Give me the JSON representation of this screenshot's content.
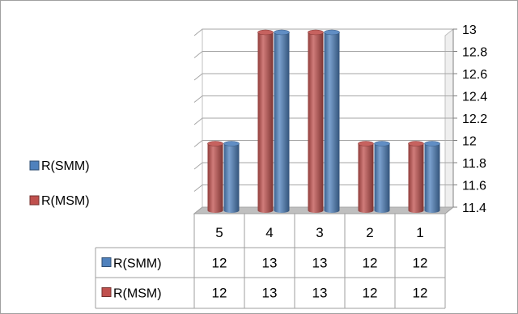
{
  "chart_data": {
    "type": "bar",
    "categories": [
      "5",
      "4",
      "3",
      "2",
      "1"
    ],
    "series": [
      {
        "name": "R(MSM)",
        "values": [
          12,
          13,
          13,
          12,
          12
        ],
        "color": "#c0504d"
      },
      {
        "name": "R(SMM)",
        "values": [
          12,
          13,
          13,
          12,
          12
        ],
        "color": "#4f81bd"
      }
    ],
    "legend": {
      "position": "left",
      "items": [
        {
          "name": "R(SMM)",
          "color": "#4f81bd"
        },
        {
          "name": "R(MSM)",
          "color": "#c0504d"
        }
      ]
    },
    "yaxis": {
      "position": "right",
      "ylim": [
        11.4,
        13
      ],
      "ticks": [
        "13",
        "12.8",
        "12.6",
        "12.4",
        "12.2",
        "12",
        "11.8",
        "11.6",
        "11.4"
      ]
    },
    "grid": true,
    "data_table": {
      "rows": [
        {
          "name": "R(SMM)",
          "color": "#4f81bd",
          "values": [
            "12",
            "13",
            "13",
            "12",
            "12"
          ]
        },
        {
          "name": "R(MSM)",
          "color": "#c0504d",
          "values": [
            "12",
            "13",
            "13",
            "12",
            "12"
          ]
        }
      ]
    }
  }
}
